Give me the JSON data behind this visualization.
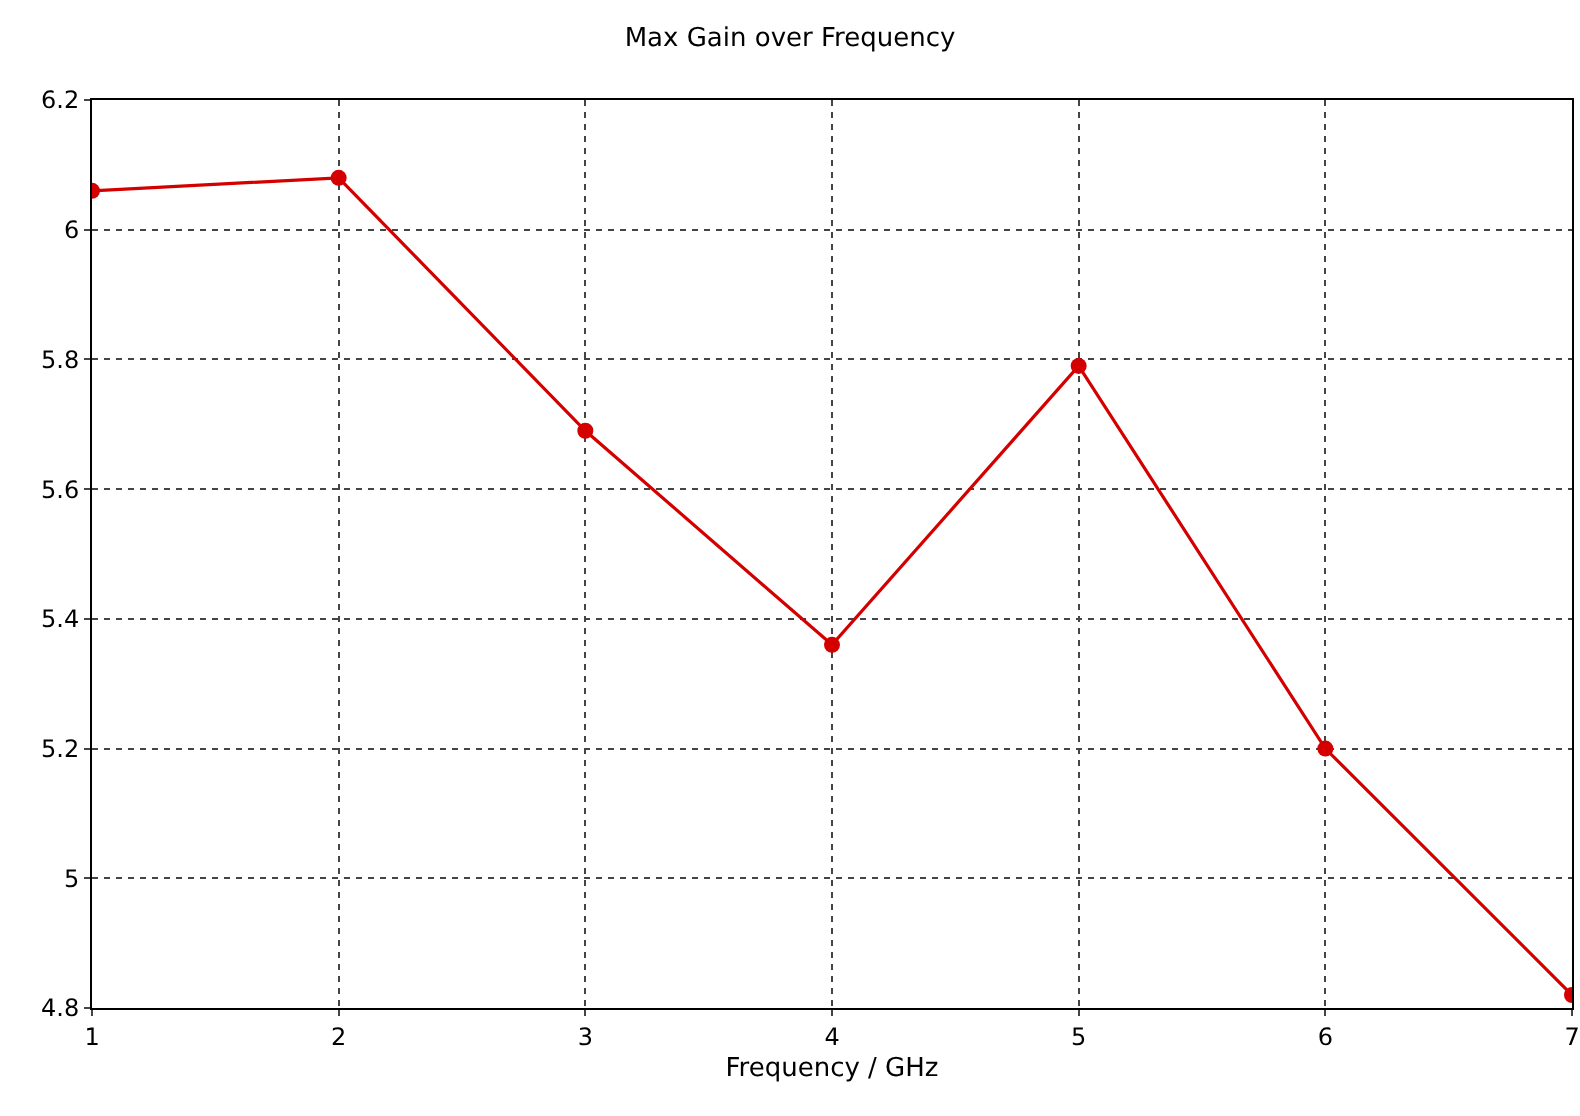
{
  "chart_data": {
    "type": "line",
    "title": "Max Gain over Frequency",
    "xlabel": "Frequency / GHz",
    "x": [
      1,
      2,
      3,
      4,
      5,
      6,
      7
    ],
    "series": [
      {
        "color": "#d40000",
        "values": [
          6.06,
          6.08,
          5.69,
          5.36,
          5.79,
          5.2,
          4.82
        ]
      }
    ],
    "xlim": [
      1,
      7
    ],
    "xticks": [
      1,
      2,
      3,
      4,
      5,
      6,
      7
    ],
    "ylim": [
      4.8,
      6.2
    ],
    "yticks": [
      4.8,
      5,
      5.2,
      5.4,
      5.6,
      5.8,
      6,
      6.2
    ],
    "grid": true,
    "marker": "circle",
    "line_style": "solid",
    "legend": false
  }
}
